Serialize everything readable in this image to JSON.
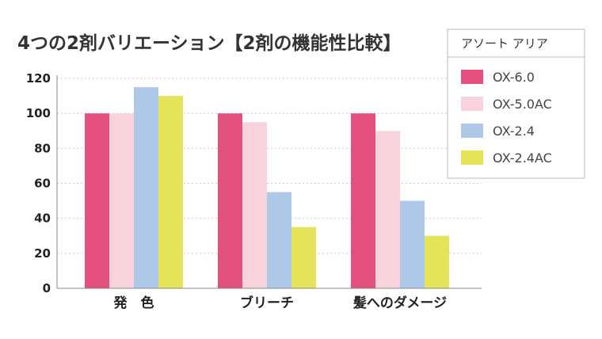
{
  "chart_data": {
    "type": "bar",
    "title": "4つの2剤バリエーション【2剤の機能性比較】",
    "categories": [
      "発　色",
      "ブリーチ",
      "髪へのダメージ"
    ],
    "series": [
      {
        "name": "OX-6.0",
        "color": "#e4507e",
        "values": [
          100,
          100,
          100
        ]
      },
      {
        "name": "OX-5.0AC",
        "color": "#f8d3dc",
        "values": [
          100,
          95,
          90
        ]
      },
      {
        "name": "OX-2.4",
        "color": "#aec9e8",
        "values": [
          115,
          55,
          50
        ]
      },
      {
        "name": "OX-2.4AC",
        "color": "#e4e35a",
        "values": [
          110,
          35,
          30
        ]
      }
    ],
    "ylim": [
      0,
      120
    ],
    "yticks": [
      "0",
      "20",
      "40",
      "60",
      "80",
      "100",
      "120"
    ],
    "grid": true,
    "legend": {
      "title": "アソート アリア",
      "placement": "top-right"
    },
    "xlabel": "",
    "ylabel": ""
  }
}
